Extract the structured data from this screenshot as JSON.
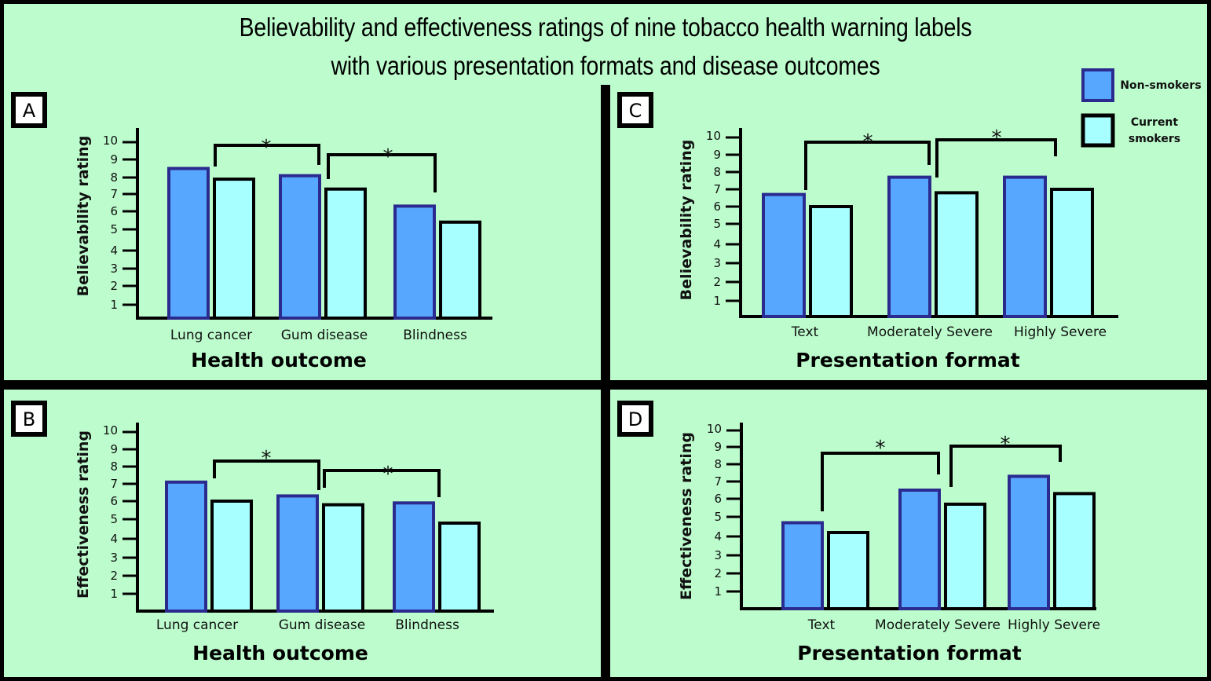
{
  "title_line1": "Believability and effectiveness ratings of nine tobacco health warning labels",
  "title_line2": "with various presentation formats and disease outcomes",
  "colors": {
    "background": "#bdfdcd",
    "frame": "#000000",
    "non_smokers_fill": "#58a7ff",
    "non_smokers_border": "#2b2b8f",
    "current_smokers_fill": "#a8ffff",
    "current_smokers_border": "#000000"
  },
  "legend": {
    "items": [
      {
        "label": "Non-smokers",
        "series": "non_smokers"
      },
      {
        "label_line1": "Current",
        "label_line2": "smokers",
        "series": "current_smokers"
      }
    ]
  },
  "chart_data": [
    {
      "panel": "A",
      "type": "bar",
      "title": "",
      "xlabel": "Health outcome",
      "ylabel": "Believability rating",
      "ylim": [
        0,
        10
      ],
      "yticks": [
        1,
        2,
        3,
        4,
        5,
        6,
        7,
        8,
        9,
        10
      ],
      "categories": [
        "Lung cancer",
        "Gum disease",
        "Blindness"
      ],
      "series": [
        {
          "name": "Non-smokers",
          "values": [
            8.5,
            8.1,
            6.3
          ]
        },
        {
          "name": "Current smokers",
          "values": [
            7.9,
            7.3,
            5.4
          ]
        }
      ],
      "significance": [
        {
          "from": "Lung cancer",
          "to": "Gum disease",
          "label": "*"
        },
        {
          "from": "Gum disease",
          "to": "Blindness",
          "label": "*"
        }
      ],
      "grid": false
    },
    {
      "panel": "B",
      "type": "bar",
      "title": "",
      "xlabel": "Health outcome",
      "ylabel": "Effectiveness rating",
      "ylim": [
        0,
        10
      ],
      "yticks": [
        1,
        2,
        3,
        4,
        5,
        6,
        7,
        8,
        9,
        10
      ],
      "categories": [
        "Lung cancer",
        "Gum disease",
        "Blindness"
      ],
      "series": [
        {
          "name": "Non-smokers",
          "values": [
            7.1,
            6.3,
            5.9
          ]
        },
        {
          "name": "Current smokers",
          "values": [
            6.0,
            5.8,
            4.8
          ]
        }
      ],
      "significance": [
        {
          "from": "Lung cancer",
          "to": "Gum disease",
          "label": "*"
        },
        {
          "from": "Gum disease",
          "to": "Blindness",
          "label": "*"
        }
      ],
      "grid": false
    },
    {
      "panel": "C",
      "type": "bar",
      "title": "",
      "xlabel": "Presentation format",
      "ylabel": "Believability rating",
      "ylim": [
        0,
        10
      ],
      "yticks": [
        1,
        2,
        3,
        4,
        5,
        6,
        7,
        8,
        9,
        10
      ],
      "categories": [
        "Text",
        "Moderately Severe",
        "Highly  Severe"
      ],
      "series": [
        {
          "name": "Non-smokers",
          "values": [
            6.7,
            7.7,
            7.7
          ]
        },
        {
          "name": "Current smokers",
          "values": [
            6.0,
            6.8,
            7.0
          ]
        }
      ],
      "significance": [
        {
          "from": "Text",
          "to": "Moderately Severe",
          "label": "*"
        },
        {
          "from": "Moderately Severe",
          "to": "Highly Severe",
          "label": "*"
        }
      ],
      "grid": false
    },
    {
      "panel": "D",
      "type": "bar",
      "title": "",
      "xlabel": "Presentation format",
      "ylabel": "Effectiveness rating",
      "ylim": [
        0,
        10
      ],
      "yticks": [
        1,
        2,
        3,
        4,
        5,
        6,
        7,
        8,
        9,
        10
      ],
      "categories": [
        "Text",
        "Moderately Severe",
        "Highly Severe"
      ],
      "series": [
        {
          "name": "Non-smokers",
          "values": [
            4.7,
            6.5,
            7.3
          ]
        },
        {
          "name": "Current smokers",
          "values": [
            4.2,
            5.7,
            6.3
          ]
        }
      ],
      "significance": [
        {
          "from": "Text",
          "to": "Moderately Severe",
          "label": "*"
        },
        {
          "from": "Moderately Severe",
          "to": "Highly Severe",
          "label": "*"
        }
      ],
      "grid": false
    }
  ]
}
